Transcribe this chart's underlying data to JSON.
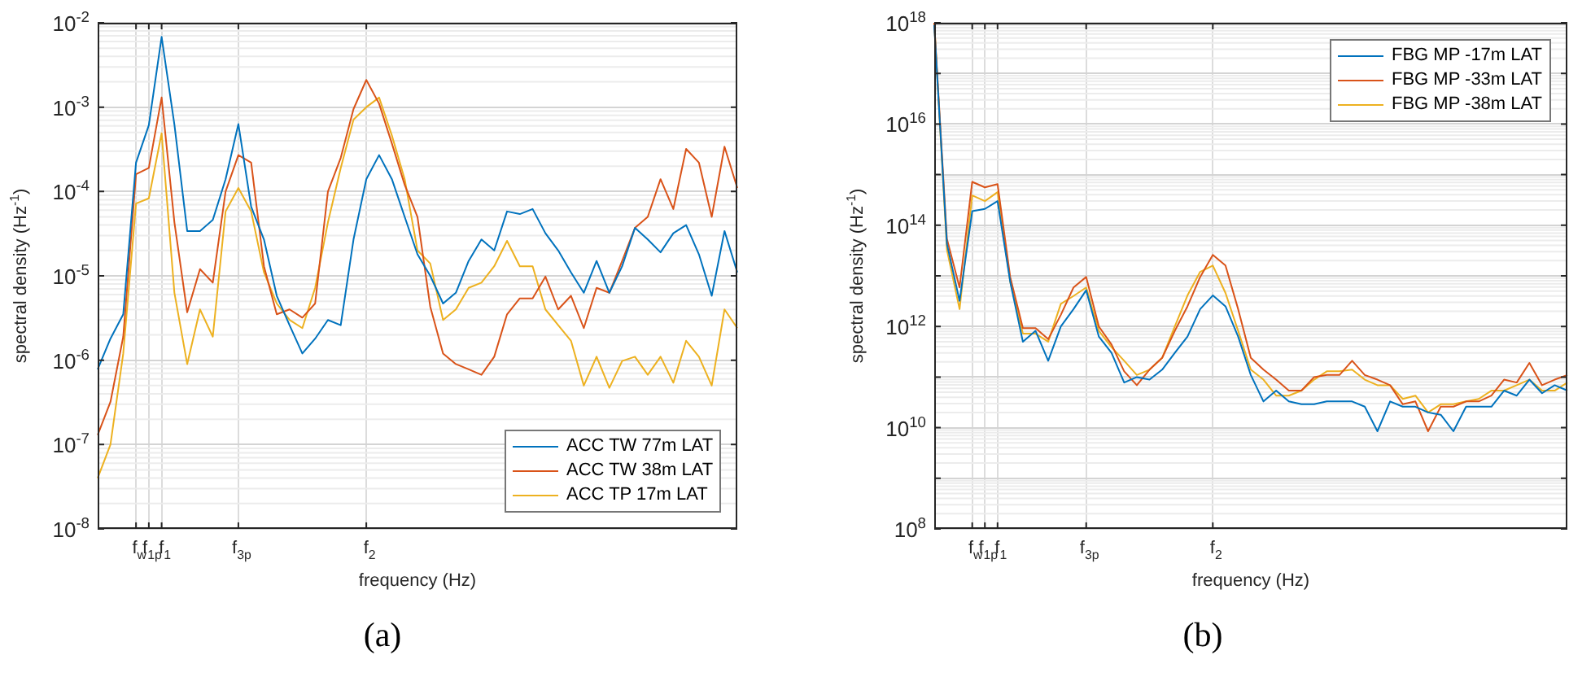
{
  "chart_data": [
    {
      "type": "line",
      "xlabel": "frequency (Hz)",
      "ylabel": "spectral density (Hz$^{-1}$)",
      "log": "y",
      "grid": true,
      "legend": "bottom right",
      "annotations": [
        "(a)"
      ],
      "categories": [
        null,
        null,
        null,
        "f$_{w}$",
        "f$_{1p}$",
        "f$_{1}$",
        null,
        null,
        null,
        null,
        null,
        "f$_{3p}$",
        null,
        null,
        null,
        null,
        null,
        null,
        null,
        null,
        null,
        "f$_{2}$",
        null,
        null,
        null,
        null,
        null,
        null,
        null,
        null,
        null,
        null,
        null,
        null,
        null,
        null,
        null,
        null,
        null,
        null,
        null,
        null,
        null,
        null,
        null,
        null,
        null,
        null,
        null,
        null,
        null
      ],
      "ylim": [
        1e-08,
        0.01
      ],
      "yticks": [
        {
          "value": 1e-08,
          "label": "10$^{-8}$"
        },
        {
          "value": 1e-07,
          "label": "10$^{-7}$"
        },
        {
          "value": 1e-06,
          "label": "10$^{-6}$"
        },
        {
          "value": 1e-05,
          "label": "10$^{-5}$"
        },
        {
          "value": 0.0001,
          "label": "10$^{-4}$"
        },
        {
          "value": 0.001,
          "label": "10$^{-3}$"
        },
        {
          "value": 0.01,
          "label": "10$^{-2}$"
        }
      ],
      "series": [
        {
          "name": "ACC TW 77m LAT",
          "color": "#0072bd",
          "values": [
            7.8e-07,
            1.8e-06,
            3.5e-06,
            0.00022,
            0.00061,
            0.0068,
            0.00062,
            3.4e-05,
            3.4e-05,
            4.6e-05,
            0.00014,
            0.00063,
            6.6e-05,
            2.7e-05,
            5.8e-06,
            2.6e-06,
            1.2e-06,
            1.8e-06,
            3e-06,
            2.6e-06,
            2.7e-05,
            0.00014,
            0.00027,
            0.00014,
            5e-05,
            1.8e-05,
            1e-05,
            4.7e-06,
            6.3e-06,
            1.5e-05,
            2.7e-05,
            2e-05,
            5.8e-05,
            5.4e-05,
            6.2e-05,
            3.2e-05,
            2e-05,
            1.1e-05,
            6.3e-06,
            1.5e-05,
            6.3e-06,
            1.3e-05,
            3.7e-05,
            2.7e-05,
            1.9e-05,
            3.2e-05,
            4e-05,
            1.8e-05,
            5.8e-06,
            3.4e-05,
            1.1e-05
          ]
        },
        {
          "name": "ACC TW 38m LAT",
          "color": "#d95319",
          "values": [
            1.3e-07,
            3.2e-07,
            1.9e-06,
            0.00016,
            0.00019,
            0.0013,
            4.3e-05,
            3.7e-06,
            1.2e-05,
            8.3e-06,
            0.0001,
            0.00027,
            0.00022,
            1.3e-05,
            3.5e-06,
            4e-06,
            3.2e-06,
            4.7e-06,
            0.0001,
            0.00025,
            0.00095,
            0.0021,
            0.0011,
            0.00037,
            0.00012,
            5e-05,
            4.3e-06,
            1.2e-06,
            9e-07,
            7.8e-07,
            6.7e-07,
            1.1e-06,
            3.5e-06,
            5.4e-06,
            5.4e-06,
            9.8e-06,
            4e-06,
            5.8e-06,
            2.4e-06,
            7.2e-06,
            6.3e-06,
            1.5e-05,
            3.7e-05,
            5e-05,
            0.00014,
            6.2e-05,
            0.00032,
            0.00022,
            5e-05,
            0.00034,
            0.00011
          ]
        },
        {
          "name": "ACC TP 17m LAT",
          "color": "#edb120",
          "values": [
            4e-08,
            1e-07,
            1.2e-06,
            7.2e-05,
            8.3e-05,
            0.00049,
            6.3e-06,
            9e-07,
            4e-06,
            1.9e-06,
            5.8e-05,
            0.00011,
            5.8e-05,
            1.1e-05,
            4.7e-06,
            3e-06,
            2.4e-06,
            7.2e-06,
            4.3e-05,
            0.00019,
            0.00071,
            0.001,
            0.0013,
            0.00046,
            0.00014,
            2e-05,
            1.4e-05,
            3e-06,
            4e-06,
            7.2e-06,
            8.3e-06,
            1.3e-05,
            2.6e-05,
            1.3e-05,
            1.3e-05,
            4e-06,
            2.6e-06,
            1.7e-06,
            5e-07,
            1.1e-06,
            4.7e-07,
            9.8e-07,
            1.1e-06,
            6.7e-07,
            1.1e-06,
            5.4e-07,
            1.7e-06,
            1.1e-06,
            5e-07,
            4e-06,
            2.4e-06
          ]
        }
      ]
    },
    {
      "type": "line",
      "xlabel": "frequency (Hz)",
      "ylabel": "spectral density (Hz$^{-1}$)",
      "log": "y",
      "grid": true,
      "legend": "top right",
      "annotations": [
        "(b)"
      ],
      "categories": [
        null,
        null,
        null,
        "f$_{w}$",
        "f$_{1p}$",
        "f$_{1}$",
        null,
        null,
        null,
        null,
        null,
        null,
        "f$_{3p}$",
        null,
        null,
        null,
        null,
        null,
        null,
        null,
        null,
        null,
        "f$_{2}$",
        null,
        null,
        null,
        null,
        null,
        null,
        null,
        null,
        null,
        null,
        null,
        null,
        null,
        null,
        null,
        null,
        null,
        null,
        null,
        null,
        null,
        null,
        null,
        null,
        null,
        null,
        null,
        null
      ],
      "ylim": [
        100000000.0,
        1e+18
      ],
      "yticks": [
        {
          "value": 100000000.0,
          "label": "10$^{8}$"
        },
        {
          "value": 1000000000.0,
          "label": null
        },
        {
          "value": 10000000000.0,
          "label": "10$^{10}$"
        },
        {
          "value": 100000000000.0,
          "label": null
        },
        {
          "value": 1000000000000.0,
          "label": "10$^{12}$"
        },
        {
          "value": 10000000000000.0,
          "label": null
        },
        {
          "value": 100000000000000.0,
          "label": "10$^{14}$"
        },
        {
          "value": 1000000000000000.0,
          "label": null
        },
        {
          "value": 1e+16,
          "label": "10$^{16}$"
        },
        {
          "value": 1e+17,
          "label": null
        },
        {
          "value": 1e+18,
          "label": "10$^{18}$"
        }
      ],
      "series": [
        {
          "name": "FBG MP -17m LAT",
          "color": "#0072bd",
          "values": [
            9e+17,
            43000000000000.0,
            3200000000000.0,
            190000000000000.0,
            210000000000000.0,
            300000000000000.0,
            7600000000000.0,
            500000000000.0,
            820000000000.0,
            210000000000.0,
            1000000000000.0,
            2200000000000.0,
            5200000000000.0,
            630000000000.0,
            300000000000.0,
            78000000000.0,
            100000000000.0,
            89000000000.0,
            140000000000.0,
            300000000000.0,
            630000000000.0,
            2200000000000.0,
            4100000000000.0,
            2500000000000.0,
            630000000000.0,
            110000000000.0,
            33000000000.0,
            54000000000.0,
            33000000000.0,
            29000000000.0,
            29000000000.0,
            33000000000.0,
            33000000000.0,
            33000000000.0,
            26000000000.0,
            8500000000.0,
            33000000000.0,
            26000000000.0,
            26000000000.0,
            20000000000.0,
            18000000000.0,
            8500000000.0,
            26000000000.0,
            26000000000.0,
            26000000000.0,
            54000000000.0,
            43000000000.0,
            89000000000.0,
            48000000000.0,
            69000000000.0,
            54000000000.0
          ]
        },
        {
          "name": "FBG MP -33m LAT",
          "color": "#d95319",
          "values": [
            1e+18,
            54000000000000.0,
            5900000000000.0,
            720000000000000.0,
            560000000000000.0,
            650000000000000.0,
            9500000000000.0,
            930000000000.0,
            930000000000.0,
            560000000000.0,
            1700000000000.0,
            5900000000000.0,
            9500000000000.0,
            1000000000000.0,
            440000000000.0,
            130000000000.0,
            69000000000.0,
            140000000000.0,
            240000000000.0,
            820000000000.0,
            2500000000000.0,
            9500000000000.0,
            26000000000000.0,
            16000000000000.0,
            2200000000000.0,
            240000000000.0,
            140000000000.0,
            89000000000.0,
            54000000000.0,
            54000000000.0,
            100000000000.0,
            110000000000.0,
            110000000000.0,
            210000000000.0,
            110000000000.0,
            89000000000.0,
            69000000000.0,
            29000000000.0,
            33000000000.0,
            8500000000.0,
            26000000000.0,
            26000000000.0,
            33000000000.0,
            33000000000.0,
            43000000000.0,
            89000000000.0,
            78000000000.0,
            190000000000.0,
            69000000000.0,
            89000000000.0,
            110000000000.0
          ]
        },
        {
          "name": "FBG MP -38m LAT",
          "color": "#edb120",
          "values": [
            1e+18,
            33000000000000.0,
            2200000000000.0,
            390000000000000.0,
            300000000000000.0,
            450000000000000.0,
            7600000000000.0,
            720000000000.0,
            720000000000.0,
            500000000000.0,
            2800000000000.0,
            4000000000000.0,
            5900000000000.0,
            820000000000.0,
            390000000000.0,
            210000000000.0,
            110000000000.0,
            140000000000.0,
            240000000000.0,
            1000000000000.0,
            4100000000000.0,
            12000000000000.0,
            16000000000000.0,
            4600000000000.0,
            820000000000.0,
            140000000000.0,
            89000000000.0,
            43000000000.0,
            43000000000.0,
            54000000000.0,
            89000000000.0,
            130000000000.0,
            130000000000.0,
            140000000000.0,
            89000000000.0,
            69000000000.0,
            69000000000.0,
            37000000000.0,
            43000000000.0,
            20000000000.0,
            29000000000.0,
            29000000000.0,
            33000000000.0,
            37000000000.0,
            54000000000.0,
            54000000000.0,
            69000000000.0,
            89000000000.0,
            54000000000.0,
            54000000000.0,
            78000000000.0
          ]
        }
      ]
    }
  ]
}
